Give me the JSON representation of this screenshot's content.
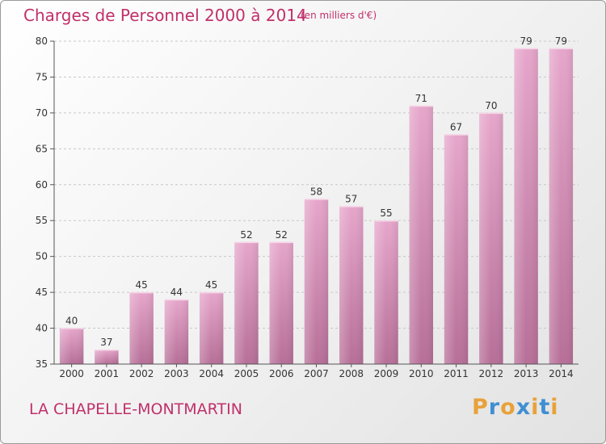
{
  "header": {
    "title": "Charges de Personnel 2000 à 2014",
    "subtitle": "(en milliers d'€)"
  },
  "footer": {
    "place": "LA CHAPELLE-MONTMARTIN",
    "brand": "Proxiti",
    "brand_colors": [
      "#e8a23a",
      "#3f8fd2",
      "#e8a23a",
      "#3f8fd2",
      "#e8a23a",
      "#3f8fd2",
      "#e8a23a"
    ]
  },
  "chart_data": {
    "type": "bar",
    "categories": [
      "2000",
      "2001",
      "2002",
      "2003",
      "2004",
      "2005",
      "2006",
      "2007",
      "2008",
      "2009",
      "2010",
      "2011",
      "2012",
      "2013",
      "2014"
    ],
    "values": [
      40,
      37,
      45,
      44,
      45,
      52,
      52,
      58,
      57,
      55,
      71,
      67,
      70,
      79,
      79
    ],
    "title": "Charges de Personnel 2000 à 2014",
    "xlabel": "",
    "ylabel": "",
    "ylim": [
      35,
      80
    ],
    "yticks": [
      35,
      40,
      45,
      50,
      55,
      60,
      65,
      70,
      75,
      80
    ],
    "grid": true,
    "legend": "none",
    "bar_color": "#d890b8"
  }
}
